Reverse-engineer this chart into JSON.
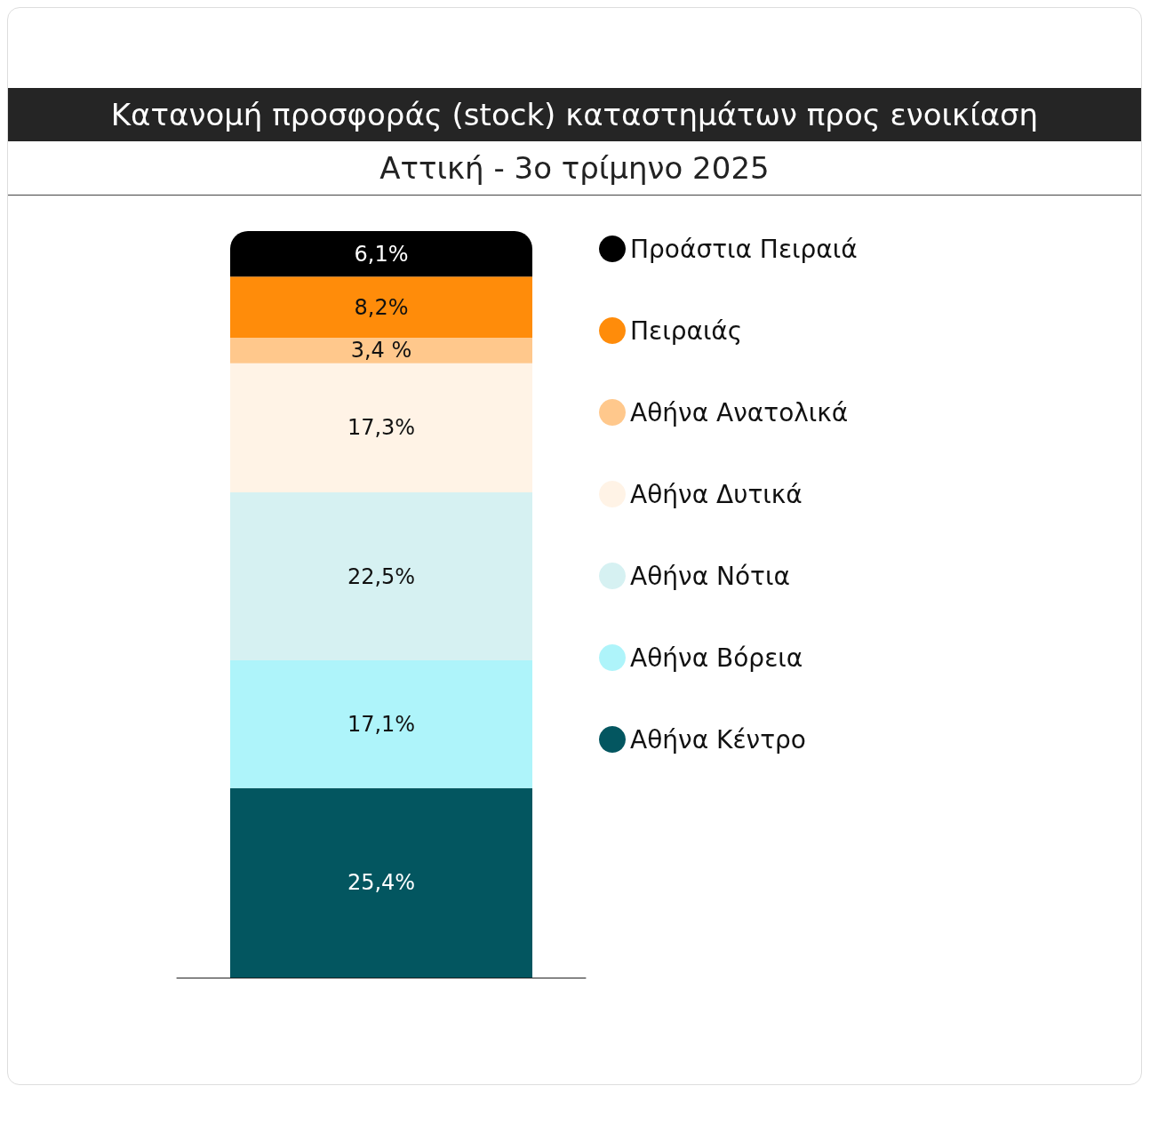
{
  "chart_data": {
    "type": "bar",
    "title": "Κατανομή προσφοράς (stock) καταστημάτων προς ενοικίαση",
    "subtitle": "Αττική - 3ο τρίμηνο 2025",
    "categories": [
      null
    ],
    "stacked": true,
    "legend": "right",
    "series": [
      {
        "name": "Αθήνα Κέντρο",
        "color": "#035660",
        "values": [
          25.4
        ],
        "value_labels": [
          "25,4%"
        ]
      },
      {
        "name": "Αθήνα Βόρεια",
        "color": "#aef4fa",
        "values": [
          17.1
        ],
        "value_labels": [
          "17,1%"
        ]
      },
      {
        "name": "Αθήνα Νότια",
        "color": "#d6f1f2",
        "values": [
          22.5
        ],
        "value_labels": [
          "22,5%"
        ]
      },
      {
        "name": "Αθήνα Δυτικά",
        "color": "#fff3e6",
        "values": [
          17.3
        ],
        "value_labels": [
          "17,3%"
        ]
      },
      {
        "name": "Αθήνα Ανατολικά",
        "color": "#ffc88c",
        "values": [
          3.4
        ],
        "value_labels": [
          "3,4 %"
        ]
      },
      {
        "name": "Πειραιάς",
        "color": "#ff8c0a",
        "values": [
          8.2
        ],
        "value_labels": [
          "8,2%"
        ]
      },
      {
        "name": "Προάστια Πειραιά",
        "color": "#000000",
        "values": [
          6.1
        ],
        "value_labels": [
          "6,1%"
        ]
      }
    ]
  }
}
